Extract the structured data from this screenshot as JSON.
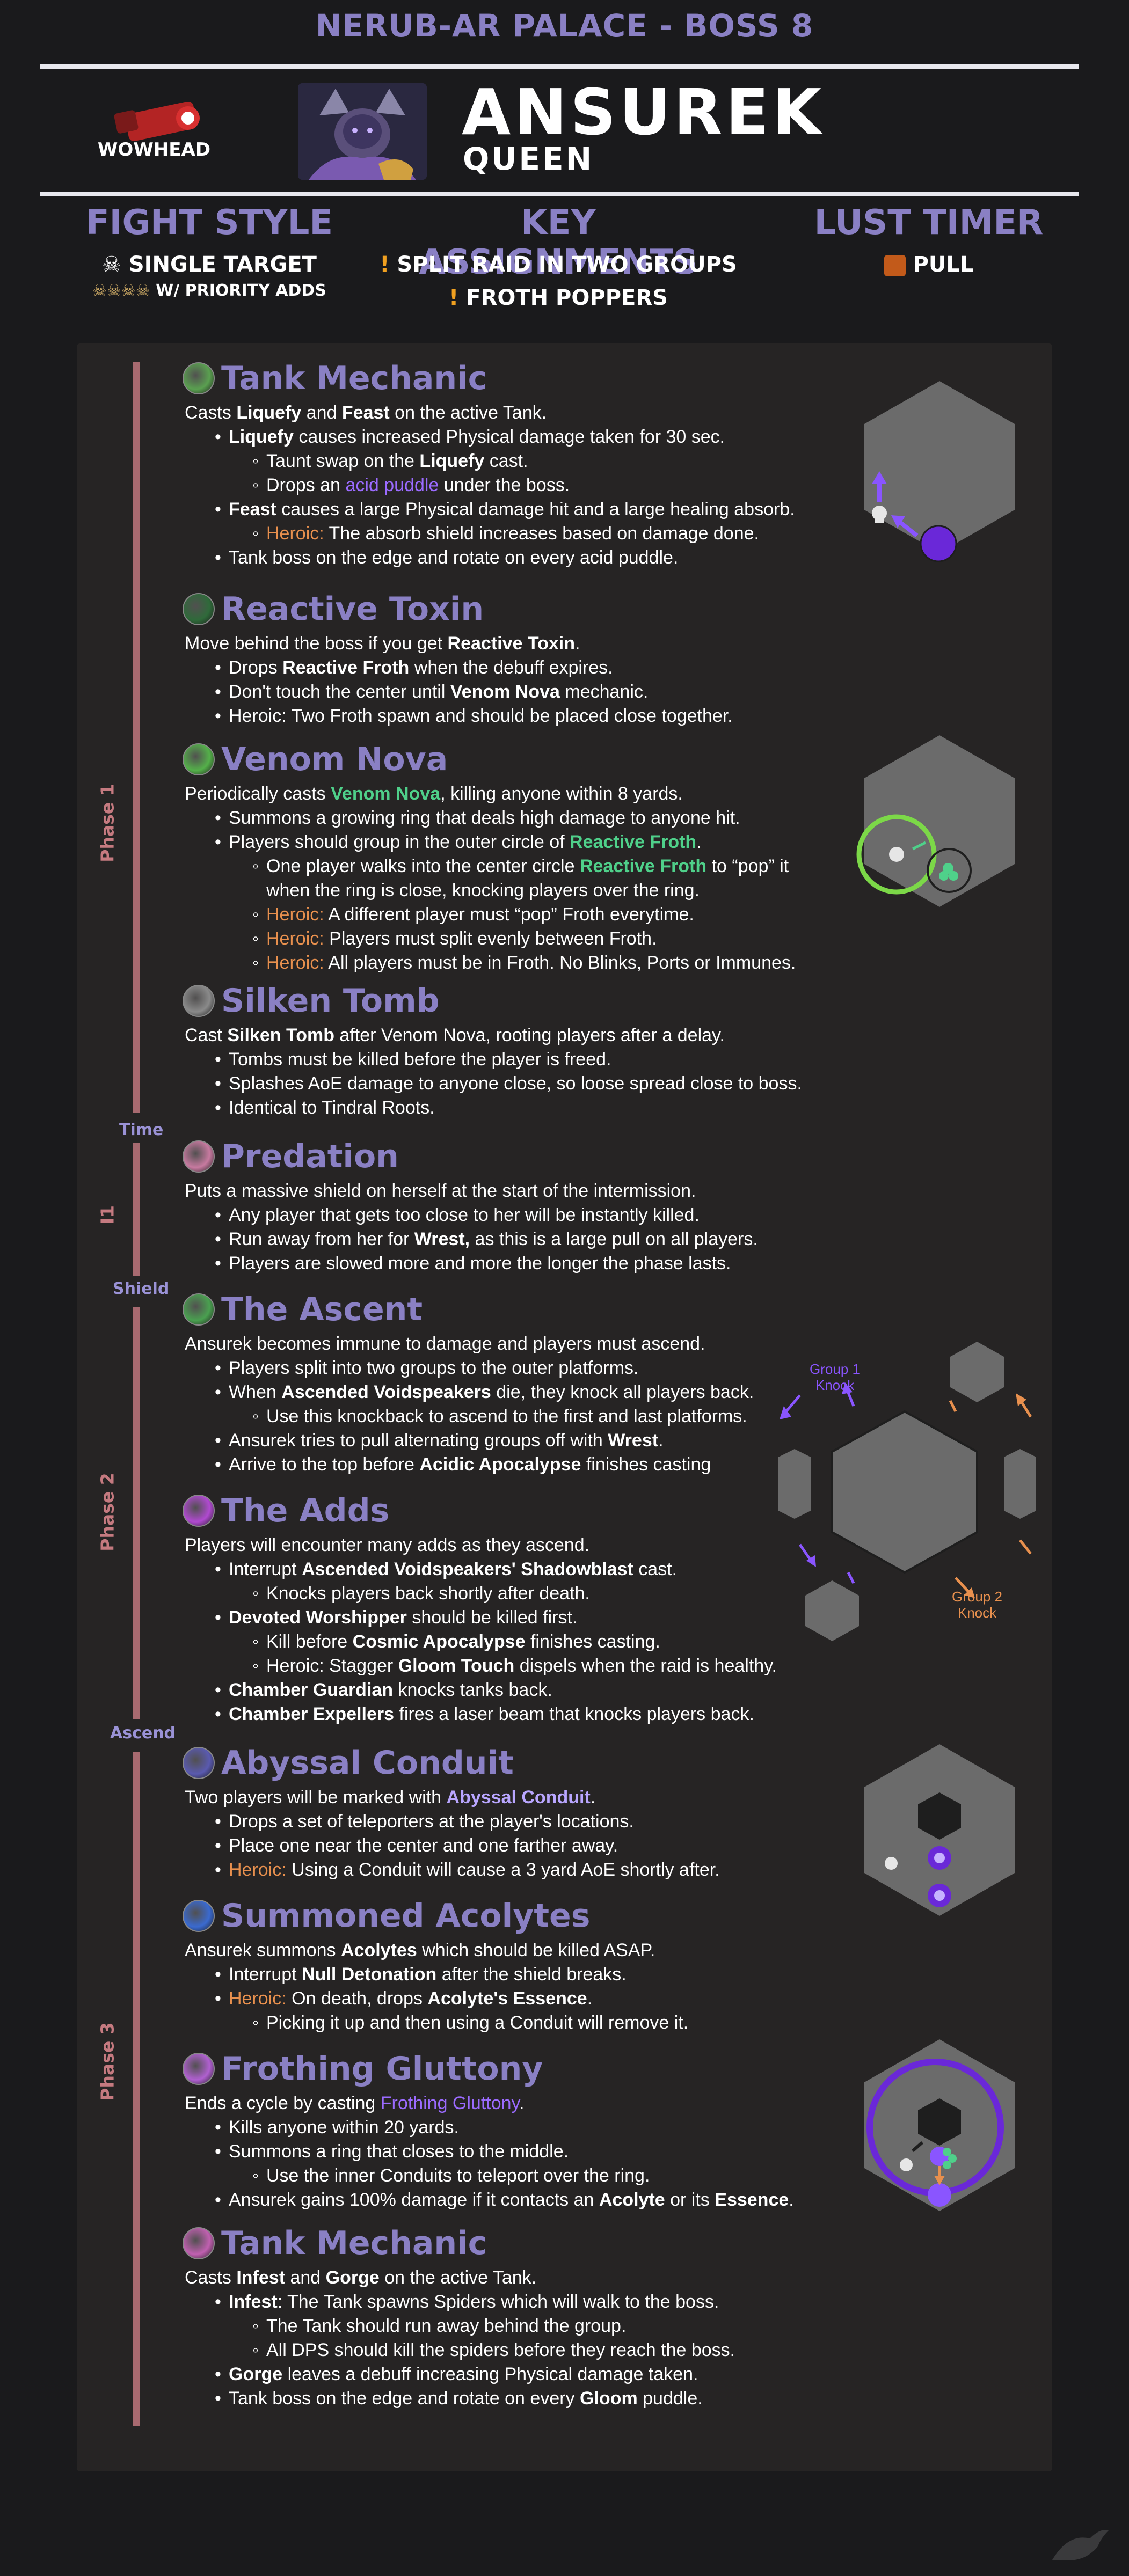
{
  "header": {
    "title": "NERUB-AR PALACE - BOSS 8",
    "logo_text": "WOWHEAD"
  },
  "boss": {
    "name": "ANSUREK",
    "subtitle": "QUEEN"
  },
  "columns": {
    "fight_style": {
      "title": "FIGHT STYLE",
      "line1": "SINGLE TARGET",
      "line2": "W/ PRIORITY ADDS"
    },
    "assignments": {
      "title": "KEY ASSIGNMENTS",
      "line1": "SPLIT RAID IN TWO GROUPS",
      "line2": "FROTH POPPERS"
    },
    "lust": {
      "title": "LUST TIMER",
      "line1": "PULL"
    }
  },
  "phases": {
    "p1": "Phase 1",
    "i1": "I1",
    "p2": "Phase 2",
    "p3": "Phase 3"
  },
  "markers": {
    "time": "Time",
    "shield": "Shield",
    "ascend": "Ascend"
  },
  "sections": [
    {
      "title": "Tank Mechanic",
      "icon": "tank-claw-icon",
      "lines": [
        [
          0,
          [
            [
              "Casts ",
              ""
            ],
            [
              "Liquefy",
              "b"
            ],
            [
              " and ",
              ""
            ],
            [
              "Feast",
              "b"
            ],
            [
              " on the active Tank.",
              ""
            ]
          ]
        ],
        [
          1,
          [
            [
              "Liquefy",
              "b"
            ],
            [
              " causes increased Physical damage taken for 30 sec.",
              ""
            ]
          ]
        ],
        [
          2,
          [
            [
              "Taunt swap on the ",
              ""
            ],
            [
              "Liquefy",
              "b"
            ],
            [
              " cast.",
              ""
            ]
          ]
        ],
        [
          2,
          [
            [
              "Drops an ",
              ""
            ],
            [
              "acid puddle",
              "purple"
            ],
            [
              " under the boss.",
              ""
            ]
          ]
        ],
        [
          1,
          [
            [
              "Feast",
              "b"
            ],
            [
              " causes a large Physical damage hit and a large healing absorb.",
              ""
            ]
          ]
        ],
        [
          2,
          [
            [
              "Heroic: ",
              "orange"
            ],
            [
              "The absorb shield increases based on damage done.",
              ""
            ]
          ]
        ],
        [
          1,
          [
            [
              "Tank boss on the edge and rotate on every acid puddle.",
              ""
            ]
          ]
        ]
      ]
    },
    {
      "title": "Reactive Toxin",
      "icon": "toxin-orb-icon",
      "lines": [
        [
          0,
          [
            [
              "Move behind the boss if you get ",
              ""
            ],
            [
              "Reactive Toxin",
              "b"
            ],
            [
              ".",
              ""
            ]
          ]
        ],
        [
          1,
          [
            [
              "Drops ",
              ""
            ],
            [
              "Reactive Froth",
              "b"
            ],
            [
              " when the debuff expires.",
              ""
            ]
          ]
        ],
        [
          1,
          [
            [
              "Don't touch the center until ",
              ""
            ],
            [
              "Venom Nova",
              "b"
            ],
            [
              " mechanic.",
              ""
            ]
          ]
        ],
        [
          1,
          [
            [
              "Heroic: Two Froth spawn and should be placed close together.",
              ""
            ]
          ]
        ]
      ]
    },
    {
      "title": "Venom Nova",
      "icon": "venom-ring-icon",
      "lines": [
        [
          0,
          [
            [
              "Periodically casts ",
              ""
            ],
            [
              "Venom Nova",
              "green"
            ],
            [
              ", killing anyone within 8 yards.",
              ""
            ]
          ]
        ],
        [
          1,
          [
            [
              "Summons a growing ring that deals high damage to anyone hit.",
              ""
            ]
          ]
        ],
        [
          1,
          [
            [
              "Players should group in the outer circle of ",
              ""
            ],
            [
              "Reactive Froth",
              "green"
            ],
            [
              ".",
              ""
            ]
          ]
        ],
        [
          2,
          [
            [
              "One player walks into the center circle ",
              ""
            ],
            [
              "Reactive Froth",
              "green"
            ],
            [
              " to “pop” it",
              ""
            ]
          ]
        ],
        [
          3,
          [
            [
              "when the ring is close, knocking players over the ring.",
              ""
            ]
          ]
        ],
        [
          2,
          [
            [
              "Heroic: ",
              "orange"
            ],
            [
              "A different player must “pop” Froth everytime.",
              ""
            ]
          ]
        ],
        [
          2,
          [
            [
              "Heroic: ",
              "orange"
            ],
            [
              "Players must split evenly between Froth.",
              ""
            ]
          ]
        ],
        [
          2,
          [
            [
              "Heroic: ",
              "orange"
            ],
            [
              "All players must be in Froth. No Blinks, Ports or Immunes.",
              ""
            ]
          ]
        ]
      ]
    },
    {
      "title": "Silken Tomb",
      "icon": "tomb-web-icon",
      "lines": [
        [
          0,
          [
            [
              "Cast ",
              ""
            ],
            [
              "Silken Tomb",
              "b"
            ],
            [
              " after Venom Nova, rooting players after a delay.",
              ""
            ]
          ]
        ],
        [
          1,
          [
            [
              "Tombs must be killed before the player is freed.",
              ""
            ]
          ]
        ],
        [
          1,
          [
            [
              "Splashes AoE damage to anyone close, so loose spread close to boss.",
              ""
            ]
          ]
        ],
        [
          1,
          [
            [
              "Identical to Tindral Roots.",
              ""
            ]
          ]
        ]
      ]
    },
    {
      "title": "Predation",
      "icon": "predation-web-icon",
      "lines": [
        [
          0,
          [
            [
              "Puts a massive shield on herself at the start of the intermission.",
              ""
            ]
          ]
        ],
        [
          1,
          [
            [
              "Any player that gets too close to her will be instantly killed.",
              ""
            ]
          ]
        ],
        [
          1,
          [
            [
              "Run away from her for ",
              ""
            ],
            [
              "Wrest,",
              "b"
            ],
            [
              " as this is a large pull on all players.",
              ""
            ]
          ]
        ],
        [
          1,
          [
            [
              "Players are slowed more and more the longer the phase lasts.",
              ""
            ]
          ]
        ]
      ]
    },
    {
      "title": "The Ascent",
      "icon": "ascent-cross-icon",
      "lines": [
        [
          0,
          [
            [
              "Ansurek becomes immune to damage and players must ascend.",
              ""
            ]
          ]
        ],
        [
          1,
          [
            [
              "Players split into two groups to the outer platforms.",
              ""
            ]
          ]
        ],
        [
          1,
          [
            [
              "When ",
              ""
            ],
            [
              "Ascended Voidspeakers",
              "b"
            ],
            [
              " die, they knock all players back.",
              ""
            ]
          ]
        ],
        [
          2,
          [
            [
              "Use this knockback to ascend to the first and last platforms.",
              ""
            ]
          ]
        ],
        [
          1,
          [
            [
              "Ansurek tries to pull alternating groups off with ",
              ""
            ],
            [
              "Wrest",
              "b"
            ],
            [
              ".",
              ""
            ]
          ]
        ],
        [
          1,
          [
            [
              "Arrive to the top before ",
              ""
            ],
            [
              "Acidic Apocalypse",
              "b"
            ],
            [
              " finishes casting",
              ""
            ]
          ]
        ]
      ]
    },
    {
      "title": "The Adds",
      "icon": "adds-skull-icon",
      "lines": [
        [
          0,
          [
            [
              "Players will encounter many adds as they ascend.",
              ""
            ]
          ]
        ],
        [
          1,
          [
            [
              "Interrupt ",
              ""
            ],
            [
              "Ascended Voidspeakers' Shadowblast",
              "b"
            ],
            [
              " cast.",
              ""
            ]
          ]
        ],
        [
          2,
          [
            [
              "Knocks players back shortly after death.",
              ""
            ]
          ]
        ],
        [
          1,
          [
            [
              "Devoted Worshipper",
              "b"
            ],
            [
              " should be killed first.",
              ""
            ]
          ]
        ],
        [
          2,
          [
            [
              "Kill before ",
              ""
            ],
            [
              "Cosmic Apocalypse",
              "b"
            ],
            [
              " finishes casting.",
              ""
            ]
          ]
        ],
        [
          2,
          [
            [
              "Heroic: Stagger ",
              ""
            ],
            [
              "Gloom Touch",
              "b"
            ],
            [
              " dispels when the raid is healthy.",
              ""
            ]
          ]
        ],
        [
          1,
          [
            [
              "Chamber Guardian",
              "b"
            ],
            [
              " knocks tanks back.",
              ""
            ]
          ]
        ],
        [
          1,
          [
            [
              "Chamber Expellers",
              "b"
            ],
            [
              " fires a laser beam that knocks players back.",
              ""
            ]
          ]
        ]
      ]
    },
    {
      "title": "Abyssal Conduit",
      "icon": "conduit-swirl-icon",
      "lines": [
        [
          0,
          [
            [
              "Two players will be marked with ",
              ""
            ],
            [
              "Abyssal Conduit",
              "lav"
            ],
            [
              ".",
              ""
            ]
          ]
        ],
        [
          1,
          [
            [
              "Drops a set of teleporters at the player's locations.",
              ""
            ]
          ]
        ],
        [
          1,
          [
            [
              "Place one near the center and one farther away.",
              ""
            ]
          ]
        ],
        [
          1,
          [
            [
              "Heroic: ",
              "orange"
            ],
            [
              "Using a Conduit will cause a 3 yard AoE shortly after.",
              ""
            ]
          ]
        ]
      ]
    },
    {
      "title": "Summoned Acolytes",
      "icon": "acolyte-hand-icon",
      "lines": [
        [
          0,
          [
            [
              "Ansurek summons ",
              ""
            ],
            [
              "Acolytes",
              "b"
            ],
            [
              " which should be killed ASAP.",
              ""
            ]
          ]
        ],
        [
          1,
          [
            [
              "Interrupt ",
              ""
            ],
            [
              "Null Detonation",
              "b"
            ],
            [
              " after the shield breaks.",
              ""
            ]
          ]
        ],
        [
          1,
          [
            [
              "Heroic: ",
              "orange"
            ],
            [
              "On death, drops ",
              ""
            ],
            [
              "Acolyte's Essence",
              "b"
            ],
            [
              ".",
              ""
            ]
          ]
        ],
        [
          2,
          [
            [
              "Picking it up and then using a Conduit will remove it.",
              ""
            ]
          ]
        ]
      ]
    },
    {
      "title": "Frothing Gluttony",
      "icon": "gluttony-maw-icon",
      "lines": [
        [
          0,
          [
            [
              "Ends a cycle by casting ",
              ""
            ],
            [
              "Frothing Gluttony",
              "purple"
            ],
            [
              ".",
              ""
            ]
          ]
        ],
        [
          1,
          [
            [
              "Kills anyone within 20 yards.",
              ""
            ]
          ]
        ],
        [
          1,
          [
            [
              "Summons a ring that closes to the middle.",
              ""
            ]
          ]
        ],
        [
          2,
          [
            [
              "Use the inner Conduits to teleport over the ring.",
              ""
            ]
          ]
        ],
        [
          1,
          [
            [
              "Ansurek gains 100% damage if it contacts an ",
              ""
            ],
            [
              "Acolyte",
              "b"
            ],
            [
              " or its ",
              ""
            ],
            [
              "Essence",
              "b"
            ],
            [
              ".",
              ""
            ]
          ]
        ]
      ]
    },
    {
      "title": "Tank Mechanic",
      "icon": "tank-swirl-icon",
      "lines": [
        [
          0,
          [
            [
              "Casts ",
              ""
            ],
            [
              "Infest",
              "b"
            ],
            [
              " and ",
              ""
            ],
            [
              "Gorge",
              "b"
            ],
            [
              " on the active Tank.",
              ""
            ]
          ]
        ],
        [
          1,
          [
            [
              "Infest",
              "b"
            ],
            [
              ": The Tank spawns Spiders which will walk to the boss.",
              ""
            ]
          ]
        ],
        [
          2,
          [
            [
              "The Tank should run away behind the group.",
              ""
            ]
          ]
        ],
        [
          2,
          [
            [
              "All DPS should kill the spiders before they reach the boss.",
              ""
            ]
          ]
        ],
        [
          1,
          [
            [
              "Gorge",
              "b"
            ],
            [
              " leaves a debuff increasing Physical damage taken.",
              ""
            ]
          ]
        ],
        [
          1,
          [
            [
              "Tank boss on the edge and rotate on every ",
              ""
            ],
            [
              "Gloom",
              "b"
            ],
            [
              " puddle.",
              ""
            ]
          ]
        ]
      ]
    }
  ],
  "diagram_labels": {
    "group1": "Group 1 Knock",
    "group2": "Group 2 Knock"
  },
  "colors": {
    "title_purple": "#8a80c4",
    "green": "#4fd08a",
    "purple": "#9b6bff",
    "orange": "#e8904e",
    "phase_bar": "#a86a70",
    "panel": "#262424",
    "background": "#1a1a1c"
  }
}
